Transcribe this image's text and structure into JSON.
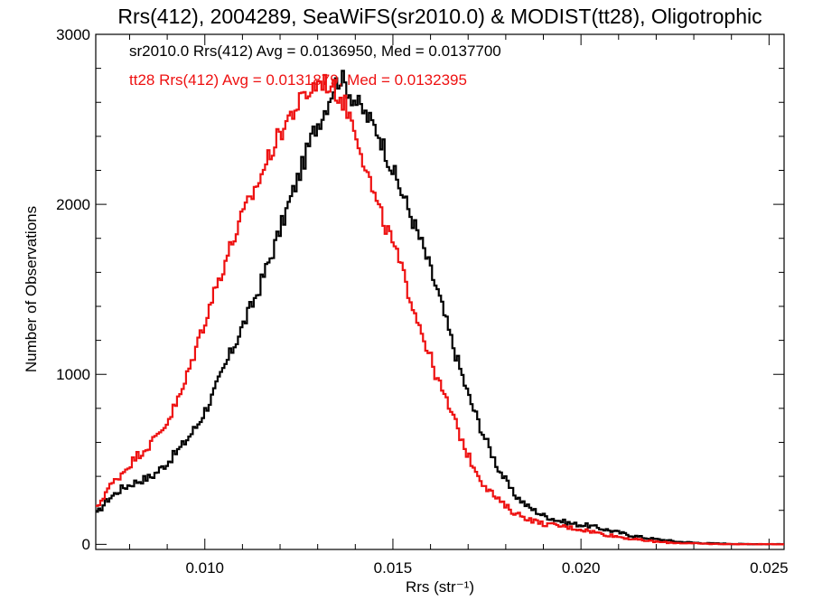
{
  "chart_data": {
    "type": "line",
    "title": "Rrs(412), 2004289, SeaWiFS(sr2010.0) & MODIST(tt28), Oligotrophic",
    "xlabel": "Rrs (str⁻¹)",
    "ylabel": "Number of Observations",
    "xlim": [
      0.0071,
      0.0254
    ],
    "ylim": [
      -30,
      3000
    ],
    "xticks": [
      0.01,
      0.015,
      0.02,
      0.025
    ],
    "xtick_labels": [
      "0.010",
      "0.015",
      "0.020",
      "0.025"
    ],
    "yticks": [
      0,
      1000,
      2000,
      3000
    ],
    "ytick_labels": [
      "0",
      "1000",
      "2000",
      "3000"
    ],
    "grid": false,
    "annotations": [
      {
        "text": "sr2010.0 Rrs(412) Avg = 0.0136950, Med = 0.0137700",
        "color": "#000000"
      },
      {
        "text": "tt28 Rrs(412) Avg = 0.0131879, Med = 0.0132395",
        "color": "#ee1111"
      }
    ],
    "series": [
      {
        "color": "#000000",
        "x": [
          0.0071,
          0.0074,
          0.0078,
          0.0082,
          0.0086,
          0.009,
          0.0094,
          0.0098,
          0.0102,
          0.0106,
          0.011,
          0.0114,
          0.0118,
          0.0122,
          0.0126,
          0.0129,
          0.0132,
          0.0134,
          0.0136,
          0.0137,
          0.0139,
          0.0142,
          0.0146,
          0.015,
          0.0154,
          0.0158,
          0.0162,
          0.0166,
          0.017,
          0.0174,
          0.0178,
          0.0182,
          0.0186,
          0.019,
          0.0194,
          0.0198,
          0.0202,
          0.0206,
          0.021,
          0.0214,
          0.0218,
          0.0222,
          0.0226,
          0.023,
          0.0234,
          0.0238,
          0.0242,
          0.0246,
          0.025,
          0.0254
        ],
        "values": [
          170,
          260,
          330,
          370,
          400,
          480,
          580,
          700,
          870,
          1080,
          1280,
          1480,
          1720,
          1980,
          2230,
          2430,
          2560,
          2680,
          2750,
          2720,
          2640,
          2550,
          2430,
          2200,
          1980,
          1750,
          1480,
          1170,
          880,
          650,
          450,
          300,
          220,
          170,
          140,
          120,
          110,
          90,
          70,
          50,
          35,
          25,
          15,
          10,
          6,
          4,
          2,
          2,
          1,
          1
        ]
      },
      {
        "color": "#ee1111",
        "x": [
          0.0071,
          0.0074,
          0.0078,
          0.0082,
          0.0086,
          0.009,
          0.0094,
          0.0098,
          0.0102,
          0.0106,
          0.011,
          0.0114,
          0.0118,
          0.0122,
          0.0126,
          0.0129,
          0.0131,
          0.0133,
          0.0135,
          0.0137,
          0.014,
          0.0143,
          0.0146,
          0.015,
          0.0154,
          0.0158,
          0.0162,
          0.0166,
          0.017,
          0.0174,
          0.0178,
          0.0182,
          0.0186,
          0.019,
          0.0194,
          0.0198,
          0.0202,
          0.0206,
          0.021,
          0.0214,
          0.0218,
          0.0222,
          0.0226,
          0.023,
          0.0234,
          0.0238,
          0.0242,
          0.0246,
          0.025,
          0.0254
        ],
        "values": [
          200,
          320,
          420,
          520,
          600,
          720,
          900,
          1180,
          1450,
          1700,
          1930,
          2120,
          2330,
          2500,
          2620,
          2690,
          2730,
          2700,
          2660,
          2600,
          2450,
          2200,
          1980,
          1770,
          1500,
          1230,
          960,
          750,
          520,
          360,
          260,
          190,
          150,
          120,
          110,
          95,
          80,
          60,
          45,
          30,
          20,
          12,
          8,
          5,
          3,
          2,
          1,
          1,
          1,
          1
        ]
      }
    ]
  }
}
